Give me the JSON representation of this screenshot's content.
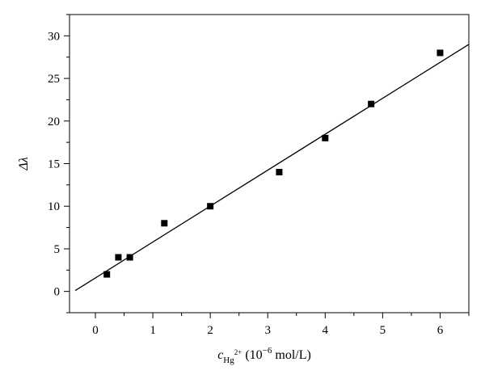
{
  "chart_data": {
    "type": "scatter",
    "title": "",
    "xlabel": {
      "symbol": "c",
      "subscript": "Hg",
      "superscript": "2+",
      "unit": "(10",
      "unit_exponent": "−6",
      "unit_tail": " mol/L)"
    },
    "ylabel": "Δλ",
    "xlim": [
      -0.45,
      6.5
    ],
    "ylim": [
      -2.5,
      32.5
    ],
    "x_ticks": [
      0,
      1,
      2,
      3,
      4,
      5,
      6
    ],
    "y_ticks": [
      0,
      5,
      10,
      15,
      20,
      25,
      30
    ],
    "x_tick_labels": [
      "0",
      "1",
      "2",
      "3",
      "4",
      "5",
      "6"
    ],
    "y_tick_labels": [
      "0",
      "5",
      "10",
      "15",
      "20",
      "25",
      "30"
    ],
    "x_minor_step": 0.5,
    "y_minor_step": 2.5,
    "grid": false,
    "legend": "none",
    "series": [
      {
        "marker": "square",
        "color": "#000000",
        "x": [
          0.2,
          0.4,
          0.6,
          1.2,
          2.0,
          3.2,
          4.0,
          4.8,
          6.0
        ],
        "y": [
          2,
          4,
          4,
          8,
          10,
          14,
          18,
          22,
          28
        ]
      }
    ],
    "fit_line": {
      "x": [
        -0.35,
        6.5
      ],
      "y": [
        0.1,
        29.0
      ],
      "color": "#000000"
    }
  }
}
